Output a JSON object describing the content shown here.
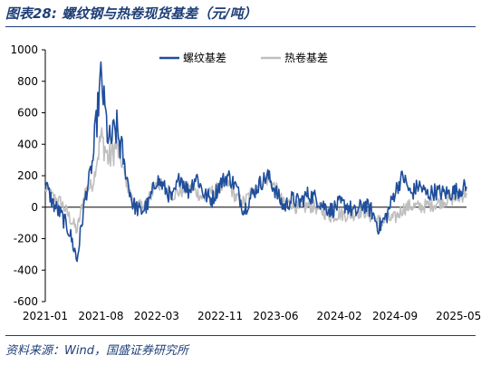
{
  "header": {
    "title": "图表28:  螺纹钢与热卷现货基差（元/吨）"
  },
  "footer": {
    "source": "资料来源：Wind，国盛证券研究所"
  },
  "colors": {
    "series_1": "#1f4e9c",
    "series_2": "#bfbfbf",
    "frame": "#1f3f77"
  },
  "chart_data": {
    "type": "line",
    "title": "",
    "xlabel": "",
    "ylabel": "",
    "ylim": [
      -600,
      1000
    ],
    "yticks": [
      -600,
      -400,
      -200,
      0,
      200,
      400,
      600,
      800,
      1000
    ],
    "xtick_labels": [
      "2021-01",
      "2021-08",
      "2022-03",
      "2022-11",
      "2023-06",
      "2024-02",
      "2024-09",
      "2025-05"
    ],
    "xlim": [
      "2021-01",
      "2025-06"
    ],
    "grid": false,
    "legend": "top-center",
    "x": [
      "2021-01",
      "2021-02",
      "2021-03",
      "2021-04",
      "2021-05",
      "2021-06",
      "2021-07",
      "2021-08",
      "2021-09",
      "2021-10",
      "2021-11",
      "2021-12",
      "2022-01",
      "2022-02",
      "2022-03",
      "2022-04",
      "2022-05",
      "2022-06",
      "2022-07",
      "2022-08",
      "2022-09",
      "2022-10",
      "2022-11",
      "2022-12",
      "2023-01",
      "2023-02",
      "2023-03",
      "2023-04",
      "2023-05",
      "2023-06",
      "2023-07",
      "2023-08",
      "2023-09",
      "2023-10",
      "2023-11",
      "2023-12",
      "2024-01",
      "2024-02",
      "2024-03",
      "2024-04",
      "2024-05",
      "2024-06",
      "2024-07",
      "2024-08",
      "2024-09",
      "2024-10",
      "2024-11",
      "2024-12",
      "2025-01",
      "2025-02",
      "2025-03",
      "2025-04",
      "2025-05",
      "2025-06"
    ],
    "series": [
      {
        "name": "螺纹基差",
        "values": [
          150,
          20,
          -50,
          -150,
          -330,
          50,
          300,
          830,
          400,
          500,
          250,
          20,
          -30,
          20,
          180,
          120,
          50,
          200,
          100,
          200,
          80,
          50,
          150,
          200,
          130,
          -20,
          80,
          150,
          200,
          100,
          0,
          50,
          30,
          80,
          60,
          10,
          -20,
          20,
          10,
          -40,
          20,
          -20,
          -130,
          -50,
          100,
          200,
          80,
          140,
          80,
          100,
          90,
          90,
          110,
          130
        ]
      },
      {
        "name": "热卷基差",
        "values": [
          120,
          60,
          30,
          -60,
          -150,
          100,
          150,
          450,
          300,
          400,
          200,
          30,
          0,
          50,
          150,
          130,
          80,
          100,
          120,
          100,
          50,
          100,
          120,
          150,
          60,
          30,
          100,
          150,
          180,
          120,
          20,
          30,
          -20,
          10,
          0,
          -30,
          -60,
          -40,
          -50,
          -40,
          -20,
          -60,
          -90,
          -80,
          -70,
          -10,
          10,
          0,
          10,
          20,
          40,
          50,
          60,
          90
        ]
      }
    ]
  }
}
